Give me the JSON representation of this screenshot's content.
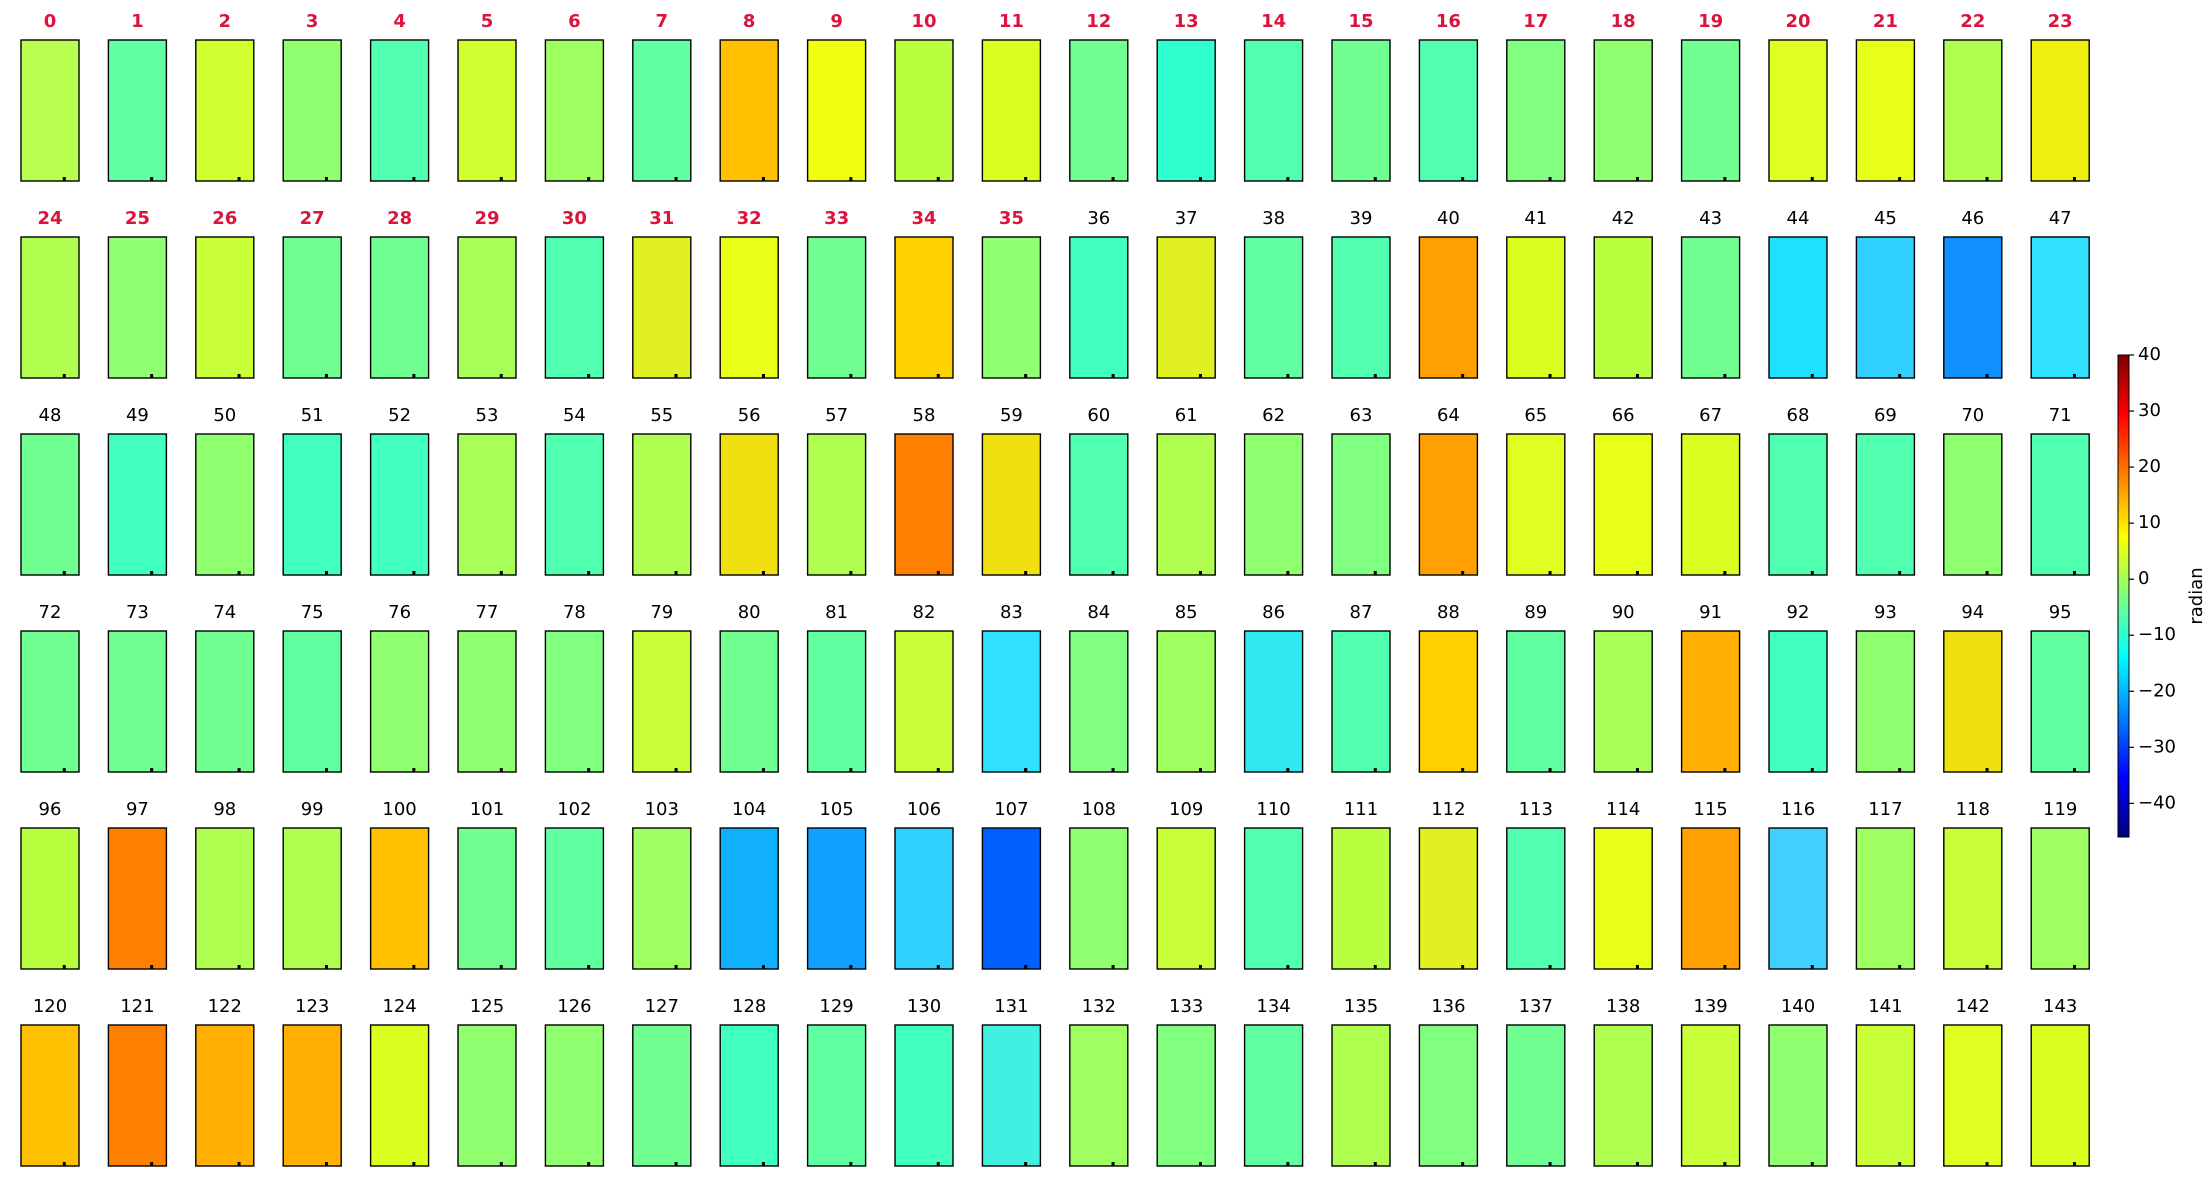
{
  "columns": 24,
  "label_colors": {
    "highlight": "#dc143c",
    "normal": "#000000"
  },
  "panels": [
    {
      "label": "0",
      "color": "#b8ff50",
      "highlight": true
    },
    {
      "label": "1",
      "color": "#60ffa0",
      "highlight": true
    },
    {
      "label": "2",
      "color": "#d0ff30",
      "highlight": true
    },
    {
      "label": "3",
      "color": "#90ff70",
      "highlight": true
    },
    {
      "label": "4",
      "color": "#50ffb0",
      "highlight": true
    },
    {
      "label": "5",
      "color": "#d0ff30",
      "highlight": true
    },
    {
      "label": "6",
      "color": "#a0ff60",
      "highlight": true
    },
    {
      "label": "7",
      "color": "#60ffa0",
      "highlight": true
    },
    {
      "label": "8",
      "color": "#ffc000",
      "highlight": true
    },
    {
      "label": "9",
      "color": "#f0ff10",
      "highlight": true
    },
    {
      "label": "10",
      "color": "#b8ff40",
      "highlight": true
    },
    {
      "label": "11",
      "color": "#d8ff20",
      "highlight": true
    },
    {
      "label": "12",
      "color": "#70ff90",
      "highlight": true
    },
    {
      "label": "13",
      "color": "#30ffd0",
      "highlight": true
    },
    {
      "label": "14",
      "color": "#50ffb0",
      "highlight": true
    },
    {
      "label": "15",
      "color": "#70ff90",
      "highlight": true
    },
    {
      "label": "16",
      "color": "#50ffb0",
      "highlight": true
    },
    {
      "label": "17",
      "color": "#80ff80",
      "highlight": true
    },
    {
      "label": "18",
      "color": "#90ff70",
      "highlight": true
    },
    {
      "label": "19",
      "color": "#70ff90",
      "highlight": true
    },
    {
      "label": "20",
      "color": "#e0ff20",
      "highlight": true
    },
    {
      "label": "21",
      "color": "#e8ff18",
      "highlight": true
    },
    {
      "label": "22",
      "color": "#b0ff50",
      "highlight": true
    },
    {
      "label": "23",
      "color": "#f0f010",
      "highlight": true
    },
    {
      "label": "24",
      "color": "#b0ff50",
      "highlight": true
    },
    {
      "label": "25",
      "color": "#90ff70",
      "highlight": true
    },
    {
      "label": "26",
      "color": "#c8ff38",
      "highlight": true
    },
    {
      "label": "27",
      "color": "#70ff90",
      "highlight": true
    },
    {
      "label": "28",
      "color": "#70ff90",
      "highlight": true
    },
    {
      "label": "29",
      "color": "#a8ff58",
      "highlight": true
    },
    {
      "label": "30",
      "color": "#50ffb0",
      "highlight": true
    },
    {
      "label": "31",
      "color": "#e0f020",
      "highlight": true
    },
    {
      "label": "32",
      "color": "#e8ff18",
      "highlight": true
    },
    {
      "label": "33",
      "color": "#70ff90",
      "highlight": true
    },
    {
      "label": "34",
      "color": "#ffd000",
      "highlight": true
    },
    {
      "label": "35",
      "color": "#90ff70",
      "highlight": true
    },
    {
      "label": "36",
      "color": "#40ffc0"
    },
    {
      "label": "37",
      "color": "#e0f020"
    },
    {
      "label": "38",
      "color": "#60ffa0"
    },
    {
      "label": "39",
      "color": "#50ffb0"
    },
    {
      "label": "40",
      "color": "#ffa000"
    },
    {
      "label": "41",
      "color": "#d8ff20"
    },
    {
      "label": "42",
      "color": "#b8ff40"
    },
    {
      "label": "43",
      "color": "#70ff90"
    },
    {
      "label": "44",
      "color": "#20e0ff"
    },
    {
      "label": "45",
      "color": "#30d0ff"
    },
    {
      "label": "46",
      "color": "#1090ff"
    },
    {
      "label": "47",
      "color": "#30e0ff"
    },
    {
      "label": "48",
      "color": "#70ff90"
    },
    {
      "label": "49",
      "color": "#40ffc0"
    },
    {
      "label": "50",
      "color": "#90ff70"
    },
    {
      "label": "51",
      "color": "#40ffc0"
    },
    {
      "label": "52",
      "color": "#40ffc0"
    },
    {
      "label": "53",
      "color": "#a8ff58"
    },
    {
      "label": "54",
      "color": "#50ffb0"
    },
    {
      "label": "55",
      "color": "#b0ff50"
    },
    {
      "label": "56",
      "color": "#f0e010"
    },
    {
      "label": "57",
      "color": "#b0ff50"
    },
    {
      "label": "58",
      "color": "#ff8000"
    },
    {
      "label": "59",
      "color": "#f0e010"
    },
    {
      "label": "60",
      "color": "#50ffb0"
    },
    {
      "label": "61",
      "color": "#b0ff50"
    },
    {
      "label": "62",
      "color": "#90ff70"
    },
    {
      "label": "63",
      "color": "#80ff80"
    },
    {
      "label": "64",
      "color": "#ffa000"
    },
    {
      "label": "65",
      "color": "#e0ff20"
    },
    {
      "label": "66",
      "color": "#e8ff18"
    },
    {
      "label": "67",
      "color": "#d8ff20"
    },
    {
      "label": "68",
      "color": "#50ffb0"
    },
    {
      "label": "69",
      "color": "#50ffb0"
    },
    {
      "label": "70",
      "color": "#90ff70"
    },
    {
      "label": "71",
      "color": "#50ffb0"
    },
    {
      "label": "72",
      "color": "#70ff90"
    },
    {
      "label": "73",
      "color": "#70ff90"
    },
    {
      "label": "74",
      "color": "#70ff90"
    },
    {
      "label": "75",
      "color": "#60ffa0"
    },
    {
      "label": "76",
      "color": "#90ff70"
    },
    {
      "label": "77",
      "color": "#90ff70"
    },
    {
      "label": "78",
      "color": "#80ff80"
    },
    {
      "label": "79",
      "color": "#c8ff38"
    },
    {
      "label": "80",
      "color": "#70ff90"
    },
    {
      "label": "81",
      "color": "#60ffa0"
    },
    {
      "label": "82",
      "color": "#c8ff38"
    },
    {
      "label": "83",
      "color": "#30e0ff"
    },
    {
      "label": "84",
      "color": "#80ff80"
    },
    {
      "label": "85",
      "color": "#a0ff60"
    },
    {
      "label": "86",
      "color": "#30e8f0"
    },
    {
      "label": "87",
      "color": "#50ffb0"
    },
    {
      "label": "88",
      "color": "#ffd000"
    },
    {
      "label": "89",
      "color": "#60ffa0"
    },
    {
      "label": "90",
      "color": "#a8ff58"
    },
    {
      "label": "91",
      "color": "#ffb000"
    },
    {
      "label": "92",
      "color": "#40ffc0"
    },
    {
      "label": "93",
      "color": "#90ff70"
    },
    {
      "label": "94",
      "color": "#f0e010"
    },
    {
      "label": "95",
      "color": "#60ffa0"
    },
    {
      "label": "96",
      "color": "#b8ff40"
    },
    {
      "label": "97",
      "color": "#ff8000"
    },
    {
      "label": "98",
      "color": "#b0ff50"
    },
    {
      "label": "99",
      "color": "#b0ff50"
    },
    {
      "label": "100",
      "color": "#ffc000"
    },
    {
      "label": "101",
      "color": "#70ff90"
    },
    {
      "label": "102",
      "color": "#60ffa0"
    },
    {
      "label": "103",
      "color": "#a0ff60"
    },
    {
      "label": "104",
      "color": "#10b0ff"
    },
    {
      "label": "105",
      "color": "#10a0ff"
    },
    {
      "label": "106",
      "color": "#30d0ff"
    },
    {
      "label": "107",
      "color": "#0060ff"
    },
    {
      "label": "108",
      "color": "#90ff70"
    },
    {
      "label": "109",
      "color": "#c8ff38"
    },
    {
      "label": "110",
      "color": "#50ffb0"
    },
    {
      "label": "111",
      "color": "#b8ff40"
    },
    {
      "label": "112",
      "color": "#e0f020"
    },
    {
      "label": "113",
      "color": "#50ffb0"
    },
    {
      "label": "114",
      "color": "#e8ff18"
    },
    {
      "label": "115",
      "color": "#ffa000"
    },
    {
      "label": "116",
      "color": "#40d0ff"
    },
    {
      "label": "117",
      "color": "#a0ff60"
    },
    {
      "label": "118",
      "color": "#c8ff38"
    },
    {
      "label": "119",
      "color": "#a0ff60"
    },
    {
      "label": "120",
      "color": "#ffc000"
    },
    {
      "label": "121",
      "color": "#ff8000"
    },
    {
      "label": "122",
      "color": "#ffb000"
    },
    {
      "label": "123",
      "color": "#ffb000"
    },
    {
      "label": "124",
      "color": "#d8ff20"
    },
    {
      "label": "125",
      "color": "#90ff70"
    },
    {
      "label": "126",
      "color": "#90ff70"
    },
    {
      "label": "127",
      "color": "#70ff90"
    },
    {
      "label": "128",
      "color": "#40ffc0"
    },
    {
      "label": "129",
      "color": "#60ffa0"
    },
    {
      "label": "130",
      "color": "#40ffc0"
    },
    {
      "label": "131",
      "color": "#40f0e0"
    },
    {
      "label": "132",
      "color": "#a0ff60"
    },
    {
      "label": "133",
      "color": "#80ff80"
    },
    {
      "label": "134",
      "color": "#60ffa0"
    },
    {
      "label": "135",
      "color": "#b0ff50"
    },
    {
      "label": "136",
      "color": "#80ff80"
    },
    {
      "label": "137",
      "color": "#70ff90"
    },
    {
      "label": "138",
      "color": "#b0ff50"
    },
    {
      "label": "139",
      "color": "#c8ff38"
    },
    {
      "label": "140",
      "color": "#90ff70"
    },
    {
      "label": "141",
      "color": "#c8ff38"
    },
    {
      "label": "142",
      "color": "#e0ff20"
    },
    {
      "label": "143",
      "color": "#d8ff20"
    }
  ],
  "colorbar": {
    "label": "radian",
    "lim": [
      -46,
      40
    ],
    "ticks": [
      40,
      30,
      20,
      10,
      0,
      {
        "value": -10,
        "label": "−10"
      },
      {
        "value": -20,
        "label": "−20"
      },
      {
        "value": -30,
        "label": "−30"
      },
      {
        "value": -40,
        "label": "−40"
      }
    ]
  }
}
